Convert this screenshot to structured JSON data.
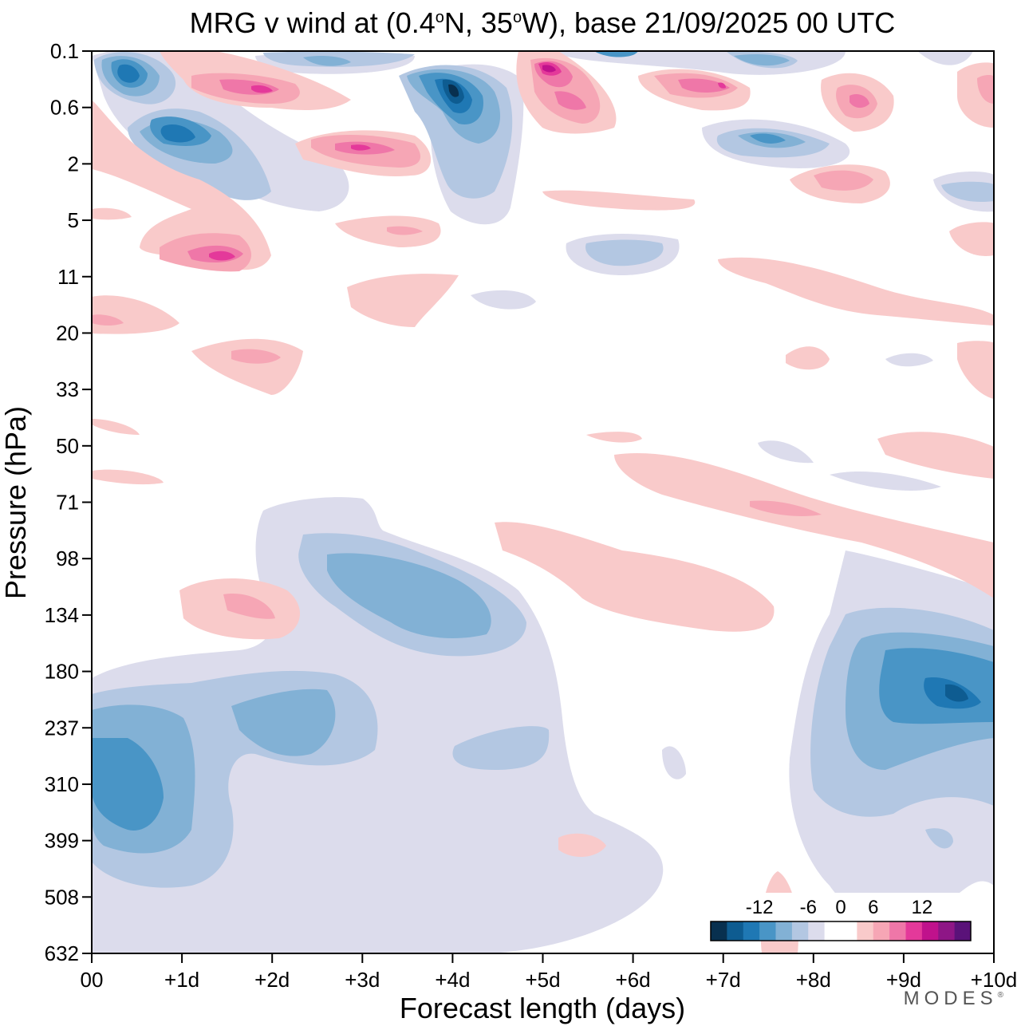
{
  "chart_data": {
    "type": "heatmap",
    "title_parts": [
      "MRG v wind at (0.4",
      "o",
      "N, 35",
      "o",
      "W),  base 21/09/2025  00 UTC"
    ],
    "xlabel": "Forecast length (days)",
    "ylabel": "Pressure (hPa)",
    "x_ticks": [
      "00",
      "+1d",
      "+2d",
      "+3d",
      "+4d",
      "+5d",
      "+6d",
      "+7d",
      "+8d",
      "+9d",
      "+10d"
    ],
    "y_ticks": [
      "0.1",
      "0.6",
      "2",
      "5",
      "11",
      "20",
      "33",
      "50",
      "71",
      "98",
      "134",
      "180",
      "237",
      "310",
      "399",
      "508",
      "632"
    ],
    "xlim": [
      0,
      10
    ],
    "colorbar": {
      "tick_labels": [
        "-12",
        "-6",
        "0",
        "6",
        "12"
      ],
      "colors": [
        "#08304f",
        "#0e5c91",
        "#1f78b4",
        "#4995c6",
        "#82b1d5",
        "#b3c7e2",
        "#dcdcec",
        "#ffffff",
        "#ffffff",
        "#f9caca",
        "#f6a6b5",
        "#ef77a8",
        "#e4399a",
        "#c0128c",
        "#8e1686",
        "#5a1279"
      ]
    },
    "contours": [
      {
        "level": -3,
        "color": "#dcdcec",
        "regions": [
          {
            "x": 0.05,
            "y": 0.65,
            "w": 6.1,
            "h": 6.8,
            "d": "low-level negative v envelope"
          },
          {
            "x": 7.65,
            "y": 8.8,
            "w": 2.35,
            "h": 6.2
          },
          {
            "x": 0.8,
            "y": 0.2,
            "w": 4.2,
            "h": 3.2
          },
          {
            "x": 6.3,
            "y": 0.6,
            "w": 3.7,
            "h": 4.8
          }
        ]
      },
      {
        "level": -6,
        "color": "#b3c7e2",
        "regions": [
          {
            "x": 0.4,
            "y": 1.9,
            "w": 4.3,
            "h": 3.0
          },
          {
            "x": 8.0,
            "y": 8.8,
            "w": 2.0,
            "h": 3.1
          }
        ]
      },
      {
        "level": 3,
        "color": "#f9caca",
        "regions": [
          {
            "x": 4.5,
            "y": 0.8,
            "w": 5.5,
            "h": 4.8
          },
          {
            "x": 1.0,
            "y": 1.3,
            "w": 2.4,
            "h": 3.7
          }
        ]
      }
    ]
  },
  "watermark": "MODES"
}
